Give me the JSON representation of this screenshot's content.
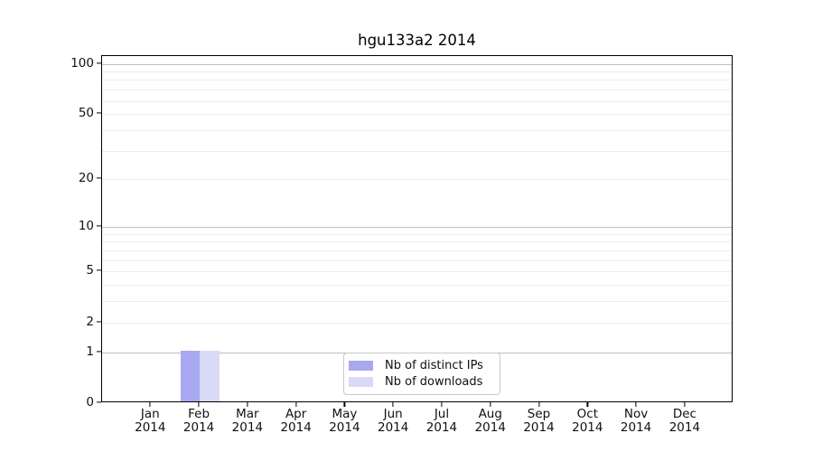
{
  "chart_data": {
    "type": "bar",
    "title": "hgu133a2 2014",
    "x_months": [
      "Jan",
      "Feb",
      "Mar",
      "Apr",
      "May",
      "Jun",
      "Jul",
      "Aug",
      "Sep",
      "Oct",
      "Nov",
      "Dec"
    ],
    "x_year": "2014",
    "series": [
      {
        "name": "Nb of distinct IPs",
        "color": "#a8a8f0",
        "values": [
          0,
          1,
          0,
          0,
          0,
          0,
          0,
          0,
          0,
          0,
          0,
          0
        ]
      },
      {
        "name": "Nb of downloads",
        "color": "#d9d9f8",
        "values": [
          0,
          1,
          0,
          0,
          0,
          0,
          0,
          0,
          0,
          0,
          0,
          0
        ]
      }
    ],
    "y_scale": "log1p",
    "ylim": [
      0,
      100
    ],
    "y_tick_values": [
      100,
      50,
      20,
      10,
      5,
      2,
      1,
      0
    ],
    "y_major_gridlines": [
      1,
      10,
      100
    ],
    "y_minor_gridlines": [
      2,
      3,
      4,
      6,
      7,
      8,
      9,
      5,
      20,
      30,
      40,
      50,
      60,
      70,
      80,
      90
    ],
    "grid": true,
    "legend_position": "bottom-center",
    "colors": {
      "axis": "#000000",
      "major_grid": "#bfbfbf",
      "minor_grid": "#ededed",
      "background": "#ffffff"
    }
  }
}
